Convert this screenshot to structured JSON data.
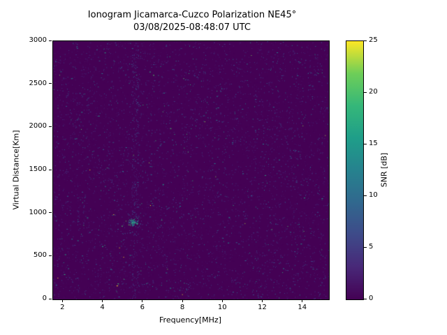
{
  "chart_data": {
    "type": "heatmap",
    "title": "Ionogram Jicamarca-Cuzco Polarization NE45°",
    "subtitle": "03/08/2025-08:48:07 UTC",
    "xlabel": "Frequency[MHz]",
    "ylabel": "Virtual Distance[Km]",
    "xlim": [
      1.5,
      15.3
    ],
    "ylim": [
      0,
      3000
    ],
    "x_ticks": [
      2,
      4,
      6,
      8,
      10,
      12,
      14
    ],
    "y_ticks": [
      0,
      500,
      1000,
      1500,
      2000,
      2500,
      3000
    ],
    "grid": false,
    "colorbar": {
      "label": "SNR [dB]",
      "ticks": [
        0,
        5,
        10,
        15,
        20,
        25
      ],
      "range": [
        0,
        25
      ],
      "colormap": "viridis",
      "position": "right"
    },
    "colormap_stops": [
      {
        "t": 0.0,
        "color": "#440154"
      },
      {
        "t": 0.125,
        "color": "#482878"
      },
      {
        "t": 0.25,
        "color": "#3e4a89"
      },
      {
        "t": 0.375,
        "color": "#31688e"
      },
      {
        "t": 0.5,
        "color": "#26828e"
      },
      {
        "t": 0.625,
        "color": "#1f9e89"
      },
      {
        "t": 0.75,
        "color": "#35b779"
      },
      {
        "t": 0.875,
        "color": "#6ece58"
      },
      {
        "t": 1.0,
        "color": "#fde725"
      }
    ],
    "background_snr_db": 0,
    "noise": {
      "description": "sparse random speckle noise across entire frequency/range map, mostly 2-12 dB",
      "speckle_count": 7000,
      "mean_snr_db": 3.5,
      "max_snr_db": 25
    },
    "features": [
      {
        "name": "faint-echo-cluster",
        "frequency_mhz": 5.5,
        "virtual_distance_km": 900,
        "snr_db": 15
      },
      {
        "name": "faint-vertical-interference-stripe",
        "frequency_mhz": 5.6,
        "snr_db": 6
      }
    ]
  }
}
